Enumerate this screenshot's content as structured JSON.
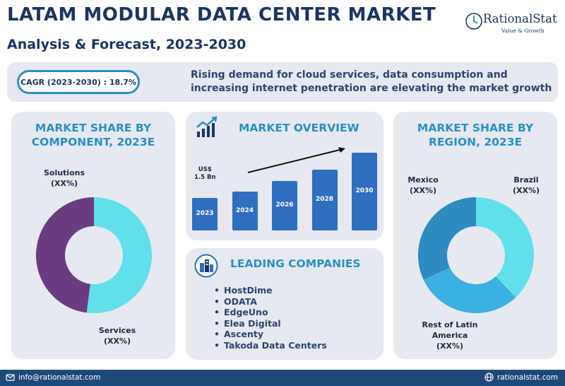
{
  "header": {
    "title": "LATAM MODULAR DATA CENTER MARKET",
    "subtitle": "Analysis & Forecast, 2023-2030"
  },
  "logo": {
    "name": "RationalStat",
    "tagline": "Value & Growth"
  },
  "banner": {
    "cagr": "CAGR (2023-2030) : 18.7%",
    "text": "Rising demand for cloud services, data consumption and increasing internet penetration are elevating the market growth"
  },
  "component_panel": {
    "title": "MARKET SHARE BY COMPONENT, 2023E",
    "labels": [
      {
        "name": "Solutions",
        "value": "(XX%)"
      },
      {
        "name": "Services",
        "value": "(XX%)"
      }
    ]
  },
  "overview_panel": {
    "title": "MARKET OVERVIEW",
    "annotation_value": "US$",
    "annotation_amount": "1.5 Bn"
  },
  "companies_panel": {
    "title": "LEADING COMPANIES",
    "items": [
      "HostDime",
      "ODATA",
      "EdgeUno",
      "Elea Digital",
      "Ascenty",
      "Takoda Data Centers"
    ]
  },
  "region_panel": {
    "title": "MARKET SHARE BY REGION, 2023E",
    "labels": [
      {
        "name": "Mexico",
        "value": "(XX%)"
      },
      {
        "name": "Brazil",
        "value": "(XX%)"
      },
      {
        "name": "Rest of Latin America",
        "value": "(XX%)"
      }
    ]
  },
  "footer": {
    "email": "info@rationalstat.com",
    "website": "rationalstat.com"
  },
  "colors": {
    "navy": "#1c3561",
    "accent_blue": "#2b8fc4",
    "panel_bg": "#e6e9ef",
    "bar_blue": "#2e6fc0",
    "donut_cyan": "#5fe0ea",
    "donut_purple": "#6a3d80",
    "region_light": "#5fe0ea",
    "region_mid": "#3cb0e0",
    "region_dark": "#2d8cc0",
    "footer_bg": "#1e4a7a"
  },
  "chart_data": [
    {
      "type": "pie",
      "title": "MARKET SHARE BY COMPONENT, 2023E",
      "categories": [
        "Solutions",
        "Services"
      ],
      "values": [
        52,
        48
      ],
      "donut": true
    },
    {
      "type": "bar",
      "title": "MARKET OVERVIEW",
      "categories": [
        "2023",
        "2024",
        "2026",
        "2028",
        "2030"
      ],
      "values": [
        1.5,
        1.8,
        2.3,
        2.8,
        3.6
      ],
      "ylabel": "",
      "data_label_first": "US$ 1.5 Bn"
    },
    {
      "type": "pie",
      "title": "MARKET SHARE BY REGION, 2023E",
      "categories": [
        "Brazil",
        "Rest of Latin America",
        "Mexico"
      ],
      "values": [
        38,
        30,
        32
      ],
      "donut": true
    }
  ]
}
